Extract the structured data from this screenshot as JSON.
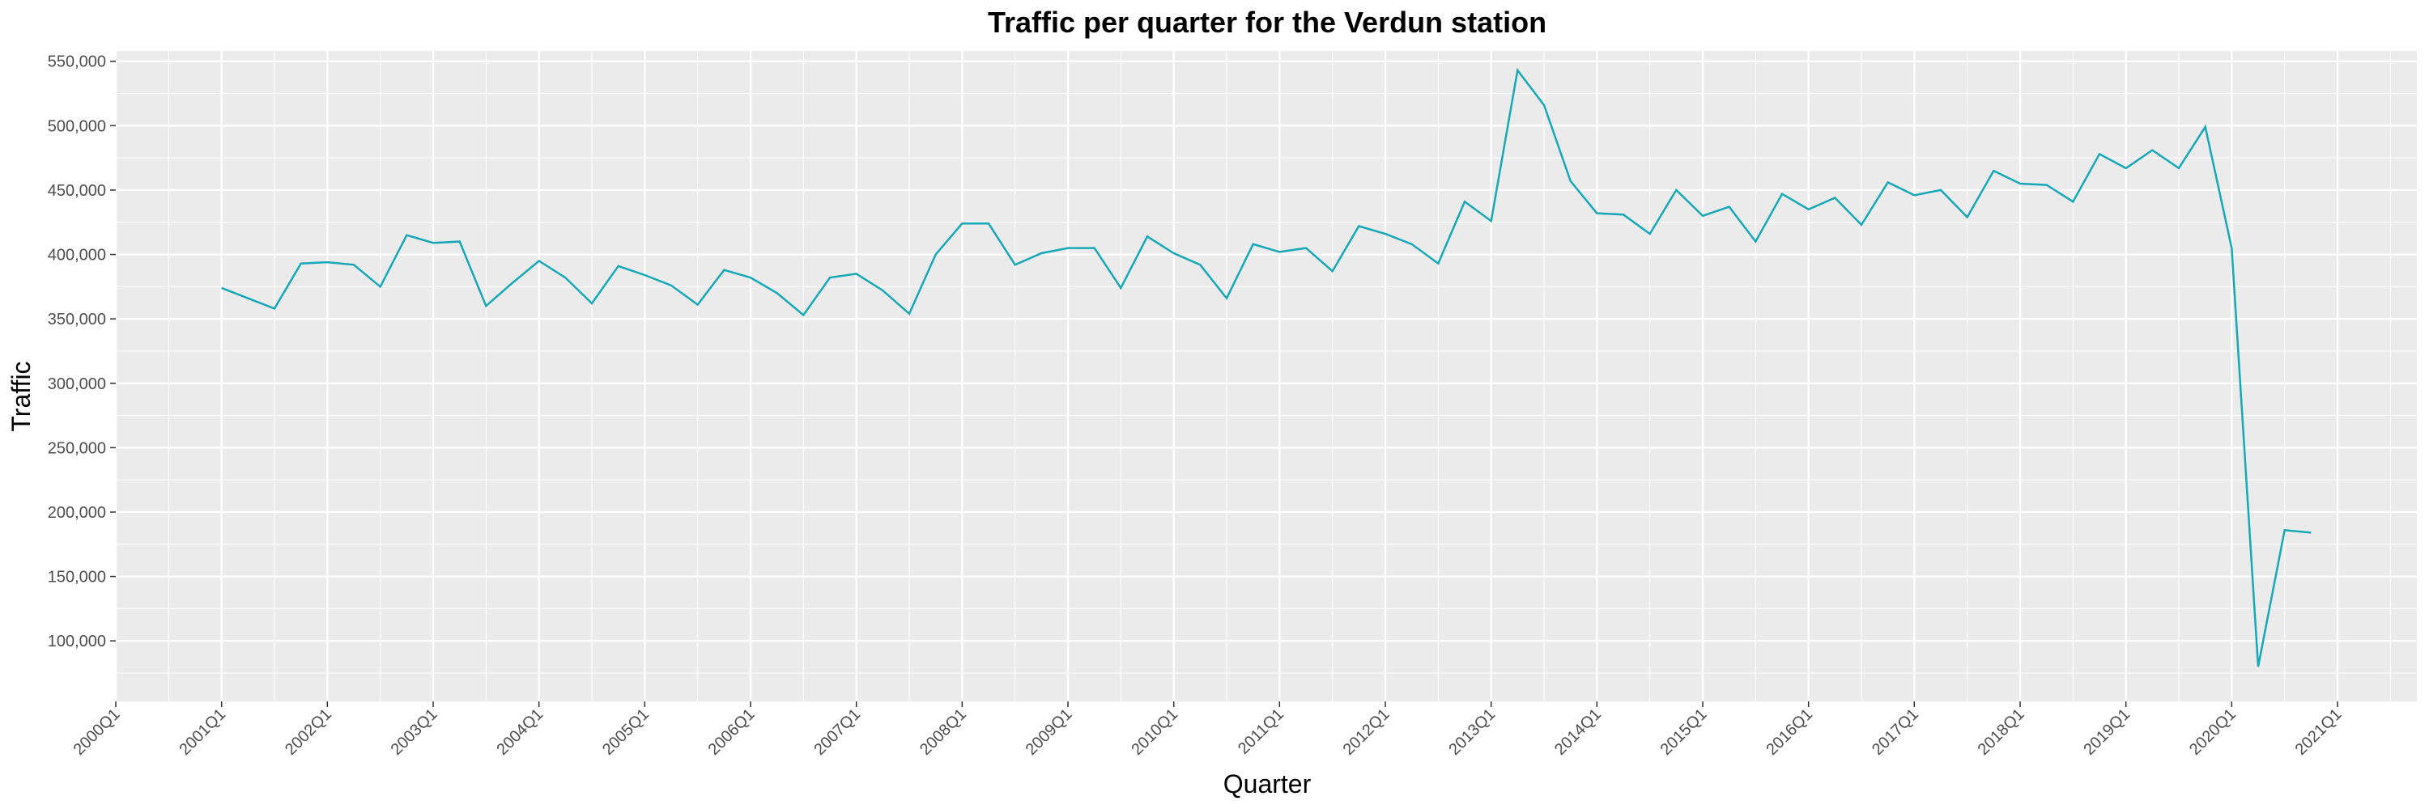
{
  "chart_data": {
    "type": "line",
    "title": "Traffic per quarter for the Verdun station",
    "xlabel": "Quarter",
    "ylabel": "Traffic",
    "x_ticks": [
      "2000Q1",
      "2001Q1",
      "2002Q1",
      "2003Q1",
      "2004Q1",
      "2005Q1",
      "2006Q1",
      "2007Q1",
      "2008Q1",
      "2009Q1",
      "2010Q1",
      "2011Q1",
      "2012Q1",
      "2013Q1",
      "2014Q1",
      "2015Q1",
      "2016Q1",
      "2017Q1",
      "2018Q1",
      "2019Q1",
      "2020Q1",
      "2021Q1"
    ],
    "y_ticks": [
      "100,000",
      "150,000",
      "200,000",
      "250,000",
      "300,000",
      "350,000",
      "400,000",
      "450,000",
      "500,000",
      "550,000"
    ],
    "y_tick_values": [
      100000,
      150000,
      200000,
      250000,
      300000,
      350000,
      400000,
      450000,
      500000,
      550000
    ],
    "xlim": [
      2000.0,
      2021.75
    ],
    "ylim": [
      53000,
      558000
    ],
    "grid": true,
    "background": "#ebebeb",
    "line_color": "#17a8b8",
    "series": [
      {
        "x": [
          2001.0,
          2001.25,
          2001.5,
          2001.75,
          2002.0,
          2002.25,
          2002.5,
          2002.75,
          2003.0,
          2003.25,
          2003.5,
          2003.75,
          2004.0,
          2004.25,
          2004.5,
          2004.75,
          2005.0,
          2005.25,
          2005.5,
          2005.75,
          2006.0,
          2006.25,
          2006.5,
          2006.75,
          2007.0,
          2007.25,
          2007.5,
          2007.75,
          2008.0,
          2008.25,
          2008.5,
          2008.75,
          2009.0,
          2009.25,
          2009.5,
          2009.75,
          2010.0,
          2010.25,
          2010.5,
          2010.75,
          2011.0,
          2011.25,
          2011.5,
          2011.75,
          2012.0,
          2012.25,
          2012.5,
          2012.75,
          2013.0,
          2013.25,
          2013.5,
          2013.75,
          2014.0,
          2014.25,
          2014.5,
          2014.75,
          2015.0,
          2015.25,
          2015.5,
          2015.75,
          2016.0,
          2016.25,
          2016.5,
          2016.75,
          2017.0,
          2017.25,
          2017.5,
          2017.75,
          2018.0,
          2018.25,
          2018.5,
          2018.75,
          2019.0,
          2019.25,
          2019.5,
          2019.75,
          2020.0,
          2020.25,
          2020.5,
          2020.75
        ],
        "values": [
          374000,
          366000,
          358000,
          393000,
          394000,
          392000,
          375000,
          415000,
          409000,
          410000,
          360000,
          378000,
          395000,
          382000,
          362000,
          391000,
          384000,
          376000,
          361000,
          388000,
          382000,
          370000,
          353000,
          382000,
          385000,
          372000,
          354000,
          400000,
          424000,
          424000,
          392000,
          401000,
          405000,
          405000,
          374000,
          414000,
          401000,
          392000,
          366000,
          408000,
          402000,
          405000,
          387000,
          422000,
          416000,
          408000,
          393000,
          441000,
          426000,
          543000,
          516000,
          457000,
          432000,
          431000,
          416000,
          450000,
          430000,
          437000,
          410000,
          447000,
          435000,
          444000,
          423000,
          456000,
          446000,
          450000,
          429000,
          465000,
          455000,
          454000,
          441000,
          478000,
          467000,
          481000,
          467000,
          499000,
          405000,
          80000,
          186000,
          184000
        ]
      }
    ]
  }
}
